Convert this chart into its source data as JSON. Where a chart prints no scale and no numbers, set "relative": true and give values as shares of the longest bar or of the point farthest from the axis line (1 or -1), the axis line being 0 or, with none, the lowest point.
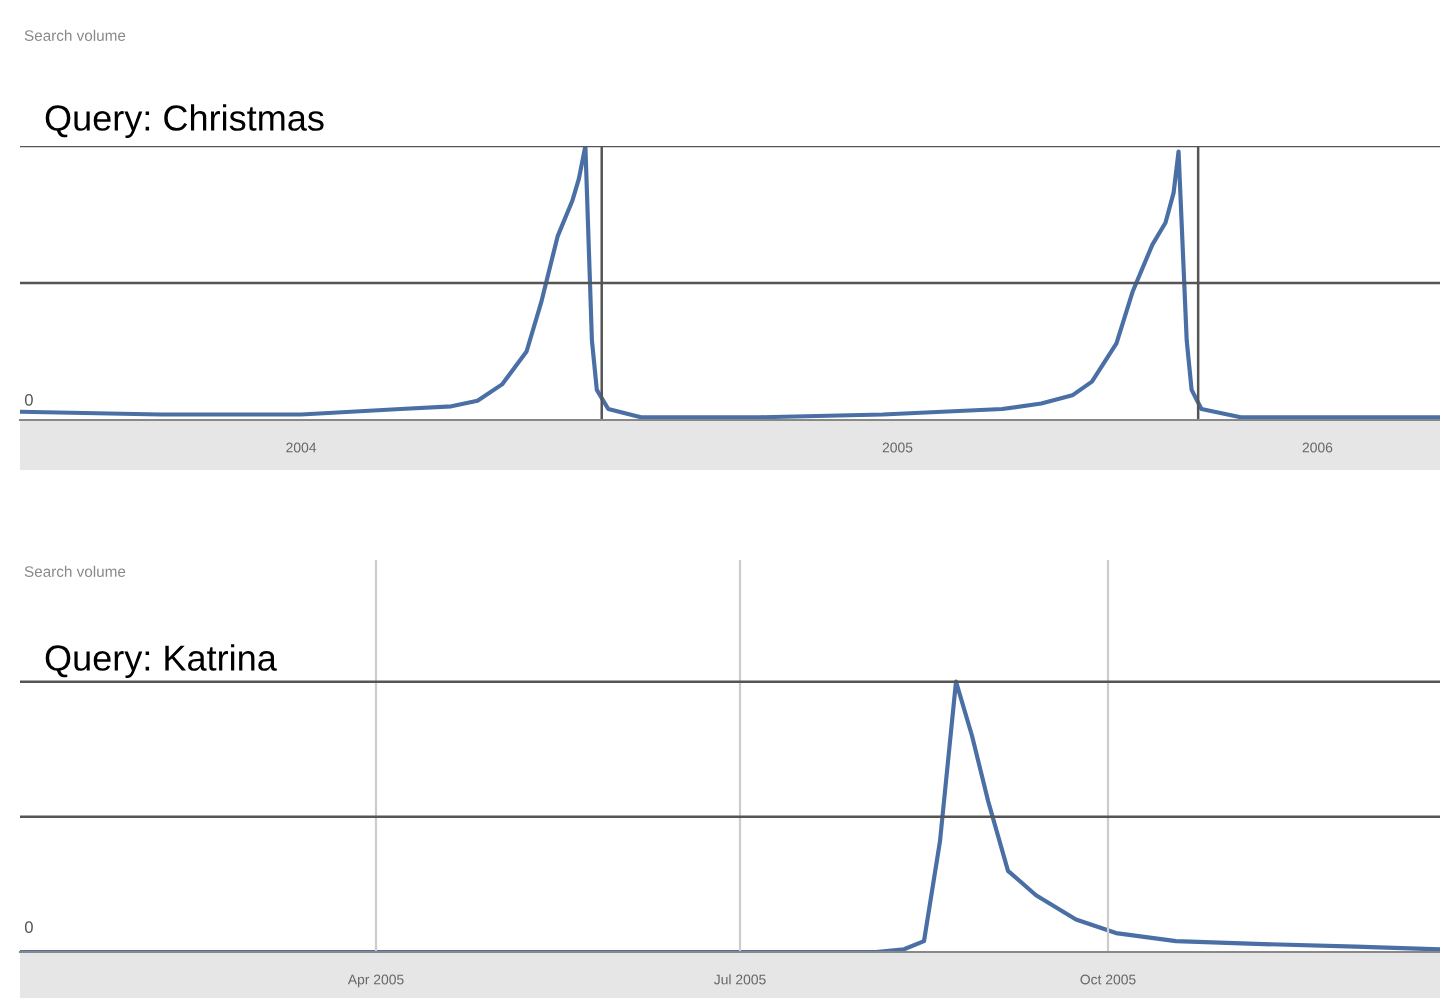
{
  "chart_data": [
    {
      "type": "line",
      "title": "Query: Christmas",
      "relative": true,
      "legend": false,
      "annotations": [
        "Search volume",
        "0"
      ],
      "x": [
        "2004-01-11",
        "2004-04-06",
        "2004-07-01",
        "2004-08-31",
        "2004-10-01",
        "2004-10-17",
        "2004-11-01",
        "2004-11-16",
        "2004-11-25",
        "2004-12-05",
        "2004-12-14",
        "2004-12-18",
        "2004-12-22",
        "2004-12-26",
        "2004-12-29",
        "2005-01-05",
        "2005-01-25",
        "2005-04-08",
        "2005-06-22",
        "2005-09-03",
        "2005-09-27",
        "2005-10-16",
        "2005-10-28",
        "2005-11-12",
        "2005-11-22",
        "2005-12-04",
        "2005-12-12",
        "2005-12-17",
        "2005-12-20",
        "2005-12-25",
        "2005-12-28",
        "2006-01-03",
        "2006-01-27",
        "2006-05-29"
      ],
      "series": [
        {
          "color": "#4a6fa5",
          "values": [
            0.03,
            0.02,
            0.02,
            0.04,
            0.05,
            0.07,
            0.13,
            0.25,
            0.43,
            0.67,
            0.8,
            0.88,
            1,
            0.29,
            0.11,
            0.04,
            0.01,
            0.01,
            0.02,
            0.04,
            0.06,
            0.09,
            0.14,
            0.28,
            0.47,
            0.64,
            0.72,
            0.83,
            0.98,
            0.29,
            0.11,
            0.04,
            0.01,
            0.01
          ]
        }
      ],
      "xlim": [
        "2004-01-11",
        "2006-05-29"
      ],
      "xticks": [
        {
          "value": "2004-07-01",
          "label": "2004"
        },
        {
          "value": "2005-07-01",
          "label": "2005"
        },
        {
          "value": "2006-03-15",
          "label": "2006"
        }
      ],
      "ref_lines": [
        {
          "axis": "x",
          "value": "2005-01-01",
          "label": null
        },
        {
          "axis": "x",
          "value": "2006-01-01",
          "label": null
        },
        {
          "axis": "y",
          "value": 0.5,
          "label": null
        },
        {
          "axis": "y",
          "value": 1,
          "label": null
        }
      ]
    },
    {
      "type": "line",
      "title": "Query: Katrina",
      "relative": true,
      "grid": "x",
      "legend": false,
      "ref_lines": [
        {
          "axis": "y",
          "value": 0.5,
          "label": null
        },
        {
          "axis": "y",
          "value": 1,
          "label": null
        }
      ],
      "annotations": [
        "Search volume",
        "0"
      ],
      "x": [
        "2005-01-02",
        "2005-08-04",
        "2005-08-11",
        "2005-08-16",
        "2005-08-20",
        "2005-08-24",
        "2005-08-28",
        "2005-09-01",
        "2005-09-06",
        "2005-09-13",
        "2005-09-23",
        "2005-10-03",
        "2005-10-18",
        "2005-11-07",
        "2005-12-02",
        "2005-12-23"
      ],
      "series": [
        {
          "color": "#4a6fa5",
          "values": [
            0,
            0,
            0.01,
            0.04,
            0.41,
            1,
            0.8,
            0.56,
            0.3,
            0.21,
            0.12,
            0.07,
            0.04,
            0.03,
            0.02,
            0.01
          ]
        }
      ],
      "xlim": [
        "2005-01-02",
        "2005-12-23"
      ],
      "xticks": [
        {
          "value": "2005-04-01",
          "label": "Apr 2005"
        },
        {
          "value": "2005-07-01",
          "label": "Jul 2005"
        },
        {
          "value": "2005-10-01",
          "label": "Oct 2005"
        }
      ]
    }
  ]
}
